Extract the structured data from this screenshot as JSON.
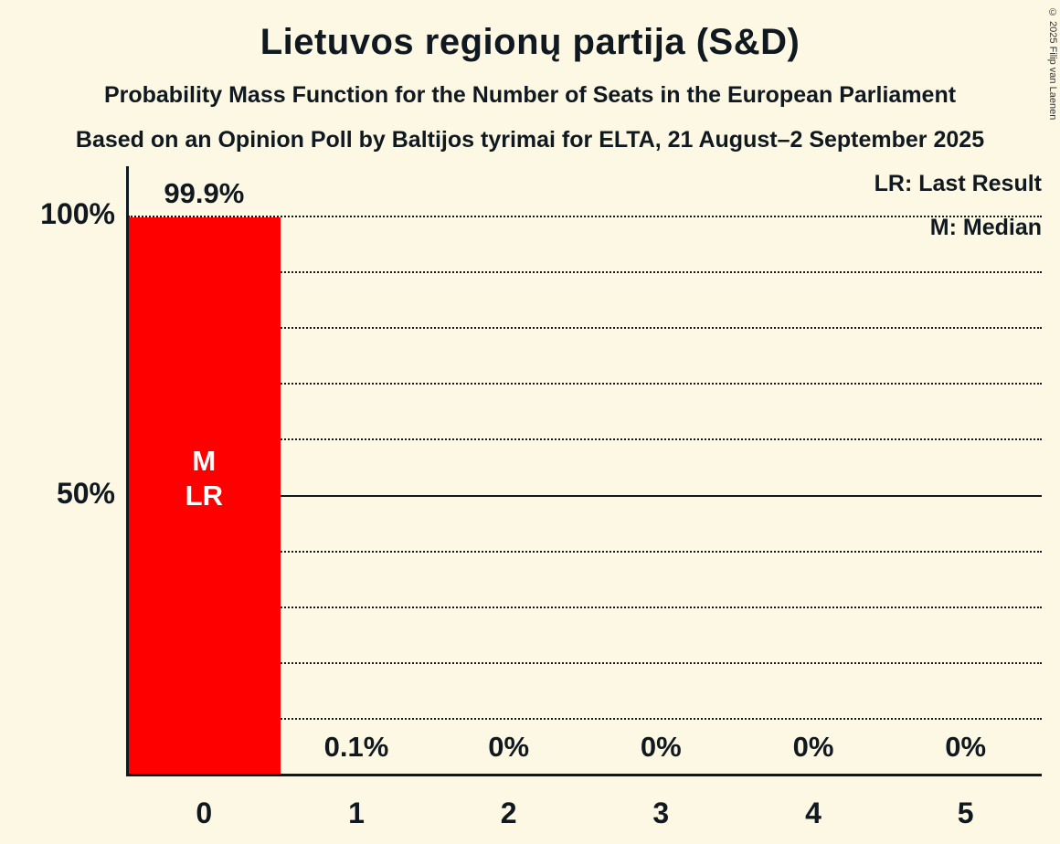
{
  "title": "Lietuvos regionų partija (S&D)",
  "subtitle1": "Probability Mass Function for the Number of Seats in the European Parliament",
  "subtitle2": "Based on an Opinion Poll by Baltijos tyrimai for ELTA, 21 August–2 September 2025",
  "legend": {
    "lr": "LR: Last Result",
    "m": "M: Median"
  },
  "copyright": "© 2025 Filip van Laenen",
  "colors": {
    "background": "#fcf8e3",
    "bar": "#ff0000",
    "text": "#101820",
    "annotation_text": "#ffffff"
  },
  "chart_data": {
    "type": "bar",
    "title": "Lietuvos regionų partija (S&D)",
    "categories": [
      "0",
      "1",
      "2",
      "3",
      "4",
      "5"
    ],
    "values": [
      99.9,
      0.1,
      0,
      0,
      0,
      0
    ],
    "value_labels": [
      "99.9%",
      "0.1%",
      "0%",
      "0%",
      "0%",
      "0%"
    ],
    "bar_annotations": [
      [
        "M",
        "LR"
      ],
      [],
      [],
      [],
      [],
      []
    ],
    "xlabel": "",
    "ylabel": "",
    "ylim": [
      0,
      100
    ],
    "yticks": [
      {
        "value": 100,
        "label": "100%"
      },
      {
        "value": 50,
        "label": "50%"
      }
    ],
    "gridlines": {
      "values": [
        10,
        20,
        30,
        40,
        50,
        60,
        70,
        80,
        90,
        100
      ],
      "solid": [
        50
      ],
      "style": "dotted"
    },
    "legend_position": "top-right",
    "legend_entries": [
      "LR: Last Result",
      "M: Median"
    ]
  }
}
